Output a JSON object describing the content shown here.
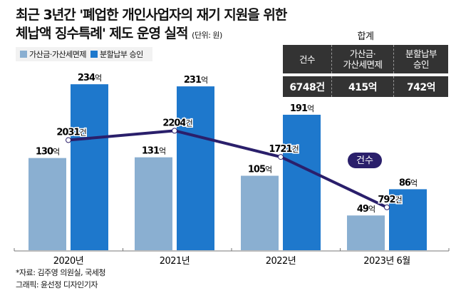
{
  "title": {
    "line1": "최근 3년간 '폐업한 개인사업자의 재기 지원을 위한",
    "line2": "체납액 징수특례' 제도 운영 실적",
    "unit": "(단위: 원)"
  },
  "colors": {
    "light_bar": "#8aafd1",
    "dark_bar": "#1e78cc",
    "line": "#2a1f6b",
    "summary_bg": "#333333",
    "legend_bg": "#f2f2f2"
  },
  "summary": {
    "caption": "합계",
    "headers": [
      "건수",
      "가산금·\n가산세면제",
      "분할납부\n승인"
    ],
    "header_lines": [
      [
        "건수"
      ],
      [
        "가산금·",
        "가산세면제"
      ],
      [
        "분할납부",
        "승인"
      ]
    ],
    "values": [
      "6748건",
      "415억",
      "742억"
    ]
  },
  "chart_data": {
    "type": "bar",
    "title": "최근 3년간 '폐업한 개인사업자의 재기 지원을 위한 체납액 징수특례' 제도 운영 실적",
    "categories": [
      "2020년",
      "2021년",
      "2022년",
      "2023년 6월"
    ],
    "series": [
      {
        "name": "가산금·가산세면제",
        "type": "bar",
        "unit": "억",
        "values": [
          130,
          131,
          105,
          49
        ]
      },
      {
        "name": "분할납부 승인",
        "type": "bar",
        "unit": "억",
        "values": [
          234,
          231,
          191,
          86
        ]
      },
      {
        "name": "건수",
        "type": "line",
        "unit": "건",
        "values": [
          2031,
          2204,
          1721,
          792
        ]
      }
    ],
    "legend": [
      "가산금·가산세면제",
      "분할납부 승인"
    ],
    "legend_position": "top-left",
    "line_label": "건수",
    "xlabel": "",
    "ylabel": "",
    "ylim": [
      0,
      240
    ],
    "line_ylim": [
      0,
      3300
    ],
    "grid": false
  },
  "footer": {
    "source": "*자료: 김주영 의원실, 국세청",
    "credit": "그래픽: 윤선정 디자인기자"
  }
}
